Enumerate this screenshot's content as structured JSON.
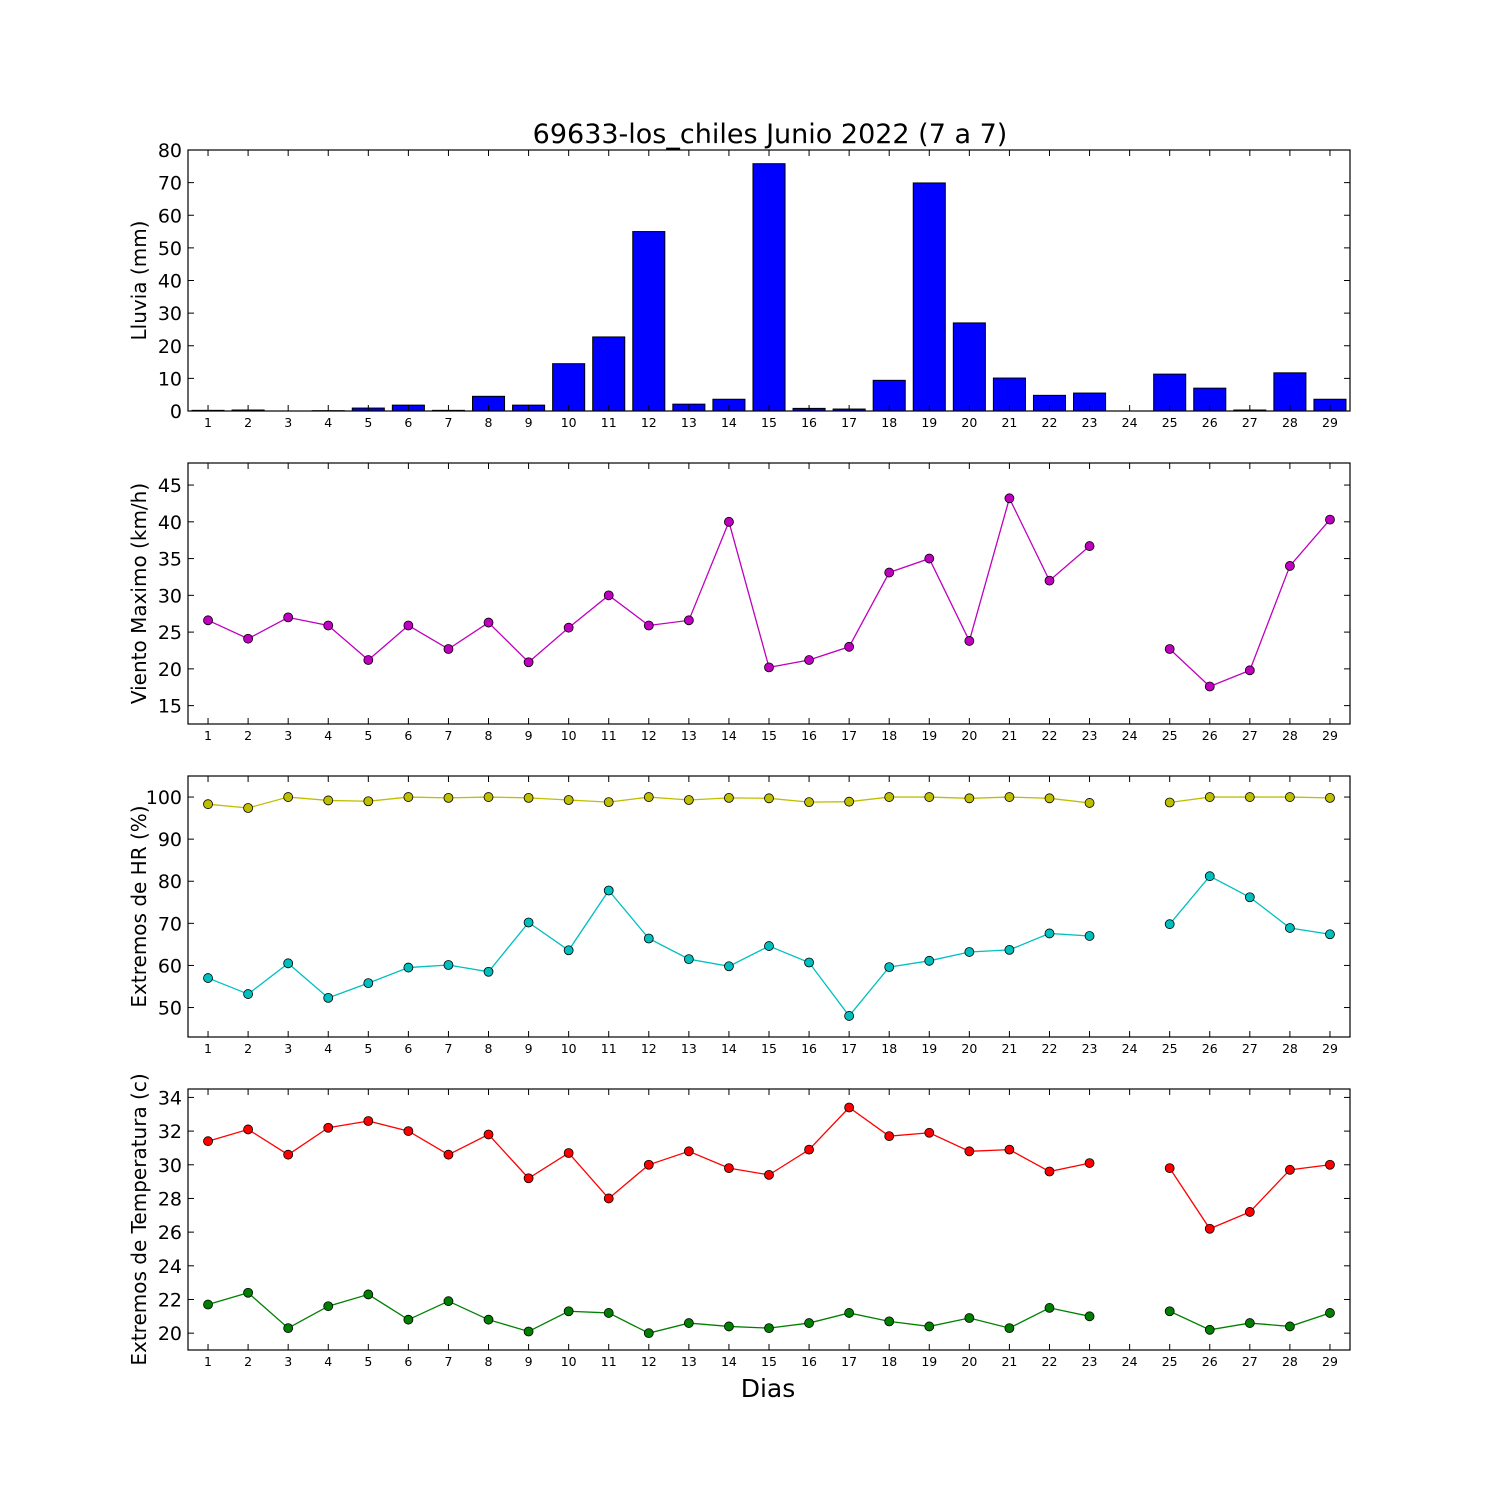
{
  "figure": {
    "title": "69633-los_chiles Junio 2022  (7 a 7)",
    "xlabel": "Dias"
  },
  "chart_data": [
    {
      "type": "bar",
      "ylabel": "Lluvia (mm)",
      "ylim": [
        0,
        80
      ],
      "yticks": [
        0,
        10,
        20,
        30,
        40,
        50,
        60,
        70,
        80
      ],
      "xlim": [
        0.5,
        29.5
      ],
      "categories": [
        "1",
        "2",
        "3",
        "4",
        "5",
        "6",
        "7",
        "8",
        "9",
        "10",
        "11",
        "12",
        "13",
        "14",
        "15",
        "16",
        "17",
        "18",
        "19",
        "20",
        "21",
        "22",
        "23",
        "24",
        "25",
        "26",
        "27",
        "28",
        "29"
      ],
      "x": [
        1,
        2,
        3,
        4,
        5,
        6,
        7,
        8,
        9,
        10,
        11,
        12,
        13,
        14,
        15,
        16,
        17,
        18,
        19,
        20,
        21,
        22,
        23,
        24,
        25,
        26,
        27,
        28,
        29
      ],
      "series": [
        {
          "color": "#0000ff",
          "values": [
            0.2,
            0.3,
            0.0,
            0.1,
            0.9,
            1.8,
            0.2,
            4.5,
            1.8,
            14.5,
            22.7,
            55.0,
            2.1,
            3.6,
            75.8,
            0.8,
            0.6,
            9.4,
            69.9,
            27.0,
            10.1,
            4.8,
            5.5,
            null,
            11.3,
            7.0,
            0.3,
            11.7,
            3.6
          ]
        }
      ]
    },
    {
      "type": "line",
      "ylabel": "Viento Maximo (km/h)",
      "ylim": [
        12.5,
        48
      ],
      "yticks": [
        15,
        20,
        25,
        30,
        35,
        40,
        45
      ],
      "xlim": [
        0.5,
        29.5
      ],
      "categories": [
        "1",
        "2",
        "3",
        "4",
        "5",
        "6",
        "7",
        "8",
        "9",
        "10",
        "11",
        "12",
        "13",
        "14",
        "15",
        "16",
        "17",
        "18",
        "19",
        "20",
        "21",
        "22",
        "23",
        "24",
        "25",
        "26",
        "27",
        "28",
        "29"
      ],
      "x": [
        1,
        2,
        3,
        4,
        5,
        6,
        7,
        8,
        9,
        10,
        11,
        12,
        13,
        14,
        15,
        16,
        17,
        18,
        19,
        20,
        21,
        22,
        23,
        24,
        25,
        26,
        27,
        28,
        29
      ],
      "series": [
        {
          "color": "#bf00bf",
          "values": [
            26.6,
            24.1,
            27.0,
            25.9,
            21.2,
            25.9,
            22.7,
            26.3,
            20.9,
            25.6,
            30.0,
            25.9,
            26.6,
            40.0,
            20.2,
            21.2,
            23.0,
            33.1,
            35.0,
            23.8,
            43.2,
            32.0,
            36.7,
            null,
            22.7,
            17.6,
            19.8,
            34.0,
            40.3
          ]
        }
      ]
    },
    {
      "type": "line",
      "ylabel": "Extremos de HR (%)",
      "ylim": [
        43,
        105
      ],
      "yticks": [
        50,
        60,
        70,
        80,
        90,
        100
      ],
      "xlim": [
        0.5,
        29.5
      ],
      "categories": [
        "1",
        "2",
        "3",
        "4",
        "5",
        "6",
        "7",
        "8",
        "9",
        "10",
        "11",
        "12",
        "13",
        "14",
        "15",
        "16",
        "17",
        "18",
        "19",
        "20",
        "21",
        "22",
        "23",
        "24",
        "25",
        "26",
        "27",
        "28",
        "29"
      ],
      "x": [
        1,
        2,
        3,
        4,
        5,
        6,
        7,
        8,
        9,
        10,
        11,
        12,
        13,
        14,
        15,
        16,
        17,
        18,
        19,
        20,
        21,
        22,
        23,
        24,
        25,
        26,
        27,
        28,
        29
      ],
      "series": [
        {
          "color": "#bfbf00",
          "values": [
            98.3,
            97.4,
            100.0,
            99.2,
            99.0,
            100.0,
            99.8,
            100.0,
            99.8,
            99.3,
            98.8,
            100.0,
            99.3,
            99.8,
            99.7,
            98.8,
            98.9,
            100.0,
            100.0,
            99.7,
            100.0,
            99.7,
            98.6,
            null,
            98.7,
            100.0,
            100.0,
            100.0,
            99.8
          ]
        },
        {
          "color": "#00bfbf",
          "values": [
            57.0,
            53.2,
            60.5,
            52.3,
            55.8,
            59.5,
            60.1,
            58.5,
            70.2,
            63.6,
            77.8,
            66.4,
            61.5,
            59.8,
            64.6,
            60.7,
            48.0,
            59.6,
            61.1,
            63.2,
            63.7,
            67.6,
            67.0,
            null,
            69.8,
            81.2,
            76.2,
            68.9,
            67.4
          ]
        }
      ]
    },
    {
      "type": "line",
      "ylabel": "Extremos de Temperatura (c)",
      "ylim": [
        19,
        34.5
      ],
      "yticks": [
        20,
        22,
        24,
        26,
        28,
        30,
        32,
        34
      ],
      "xlim": [
        0.5,
        29.5
      ],
      "categories": [
        "1",
        "2",
        "3",
        "4",
        "5",
        "6",
        "7",
        "8",
        "9",
        "10",
        "11",
        "12",
        "13",
        "14",
        "15",
        "16",
        "17",
        "18",
        "19",
        "20",
        "21",
        "22",
        "23",
        "24",
        "25",
        "26",
        "27",
        "28",
        "29"
      ],
      "x": [
        1,
        2,
        3,
        4,
        5,
        6,
        7,
        8,
        9,
        10,
        11,
        12,
        13,
        14,
        15,
        16,
        17,
        18,
        19,
        20,
        21,
        22,
        23,
        24,
        25,
        26,
        27,
        28,
        29
      ],
      "series": [
        {
          "color": "#ff0000",
          "values": [
            31.4,
            32.1,
            30.6,
            32.2,
            32.6,
            32.0,
            30.6,
            31.8,
            29.2,
            30.7,
            28.0,
            30.0,
            30.8,
            29.8,
            29.4,
            30.9,
            33.4,
            31.7,
            31.9,
            30.8,
            30.9,
            29.6,
            30.1,
            null,
            29.8,
            26.2,
            27.2,
            29.7,
            30.0
          ]
        },
        {
          "color": "#008000",
          "values": [
            21.7,
            22.4,
            20.3,
            21.6,
            22.3,
            20.8,
            21.9,
            20.8,
            20.1,
            21.3,
            21.2,
            20.0,
            20.6,
            20.4,
            20.3,
            20.6,
            21.2,
            20.7,
            20.4,
            20.9,
            20.3,
            21.5,
            21.0,
            null,
            21.3,
            20.2,
            20.6,
            20.4,
            21.2
          ]
        }
      ]
    }
  ]
}
